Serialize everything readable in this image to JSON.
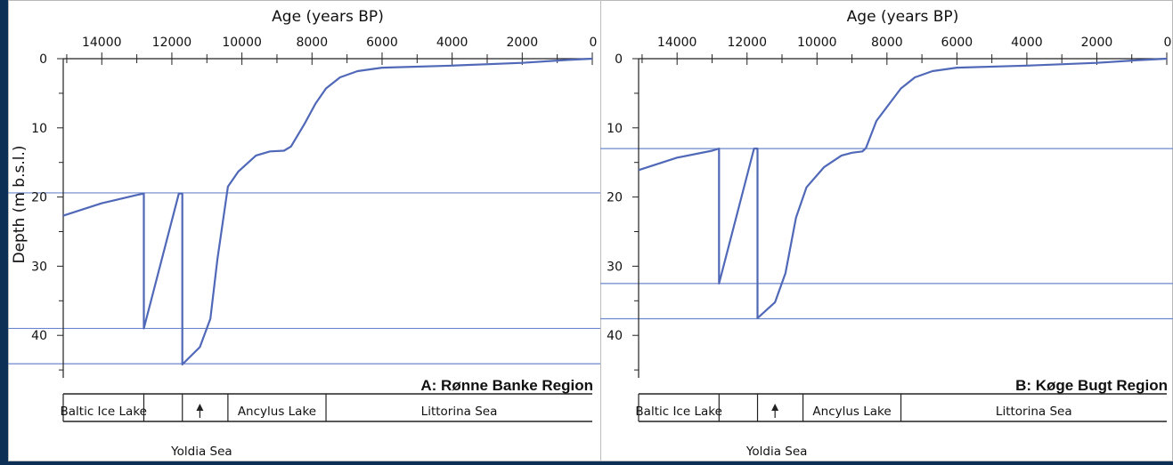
{
  "chart_data": [
    {
      "type": "line",
      "title": "A: Rønne Banke Region",
      "xlabel": "Age (years BP)",
      "ylabel": "Depth (m b.s.l.)",
      "xlim": [
        15100,
        0
      ],
      "ylim": [
        0,
        46
      ],
      "x_ticks": [
        14000,
        12000,
        10000,
        8000,
        6000,
        4000,
        2000,
        0
      ],
      "y_ticks": [
        0,
        10,
        20,
        30,
        40
      ],
      "y_minor_ticks": [
        5,
        15,
        25,
        35,
        45
      ],
      "series": [
        {
          "x": [
            15100,
            14000,
            13000,
            12800,
            12800,
            11800,
            11700,
            11700,
            11200,
            10900,
            10700,
            10400,
            10100,
            9600,
            9200,
            8800,
            8600,
            8200,
            7900,
            7600,
            7200,
            6700,
            6000,
            4000,
            2000,
            800,
            0
          ],
          "y": [
            22.7,
            20.9,
            19.7,
            19.5,
            39.0,
            19.5,
            19.5,
            44.2,
            41.7,
            37.6,
            29.0,
            18.5,
            16.3,
            14.0,
            13.4,
            13.3,
            12.7,
            9.3,
            6.5,
            4.3,
            2.7,
            1.8,
            1.3,
            1.0,
            0.6,
            0.2,
            0
          ]
        }
      ],
      "reference_lines_y": [
        19.4,
        39.0,
        44.1
      ],
      "phases": [
        "Baltic Ice Lake",
        "Ancylus Lake",
        "Littorina Sea"
      ],
      "phase_annotation": "Yoldia Sea"
    },
    {
      "type": "line",
      "title": "B: Køge Bugt Region",
      "xlabel": "Age (years BP)",
      "ylabel": "",
      "xlim": [
        15100,
        0
      ],
      "ylim": [
        0,
        46
      ],
      "x_ticks": [
        14000,
        12000,
        10000,
        8000,
        6000,
        4000,
        2000,
        0
      ],
      "y_ticks": [
        0,
        10,
        20,
        30,
        40
      ],
      "y_minor_ticks": [
        5,
        15,
        25,
        35,
        45
      ],
      "series": [
        {
          "x": [
            15100,
            14000,
            13000,
            12800,
            12800,
            11800,
            11700,
            11700,
            11200,
            10900,
            10600,
            10300,
            9800,
            9300,
            9000,
            8700,
            8600,
            8300,
            7900,
            7600,
            7200,
            6700,
            6000,
            4000,
            2000,
            800,
            0
          ],
          "y": [
            16.1,
            14.3,
            13.3,
            13.0,
            32.5,
            13.0,
            13.0,
            37.5,
            35.2,
            31.0,
            23.0,
            18.6,
            15.7,
            14.0,
            13.6,
            13.4,
            12.9,
            9.0,
            6.3,
            4.3,
            2.7,
            1.8,
            1.3,
            1.0,
            0.6,
            0.2,
            0
          ]
        }
      ],
      "reference_lines_y": [
        13.0,
        32.5,
        37.6
      ],
      "phases": [
        "Baltic Ice Lake",
        "Ancylus Lake",
        "Littorina Sea"
      ],
      "phase_annotation": "Yoldia Sea"
    }
  ],
  "colors": {
    "curve": "#5068b8",
    "reference_line": "#6c87cc",
    "axis": "#222222",
    "background": "#ffffff",
    "outer_border": "#0e2f55"
  }
}
